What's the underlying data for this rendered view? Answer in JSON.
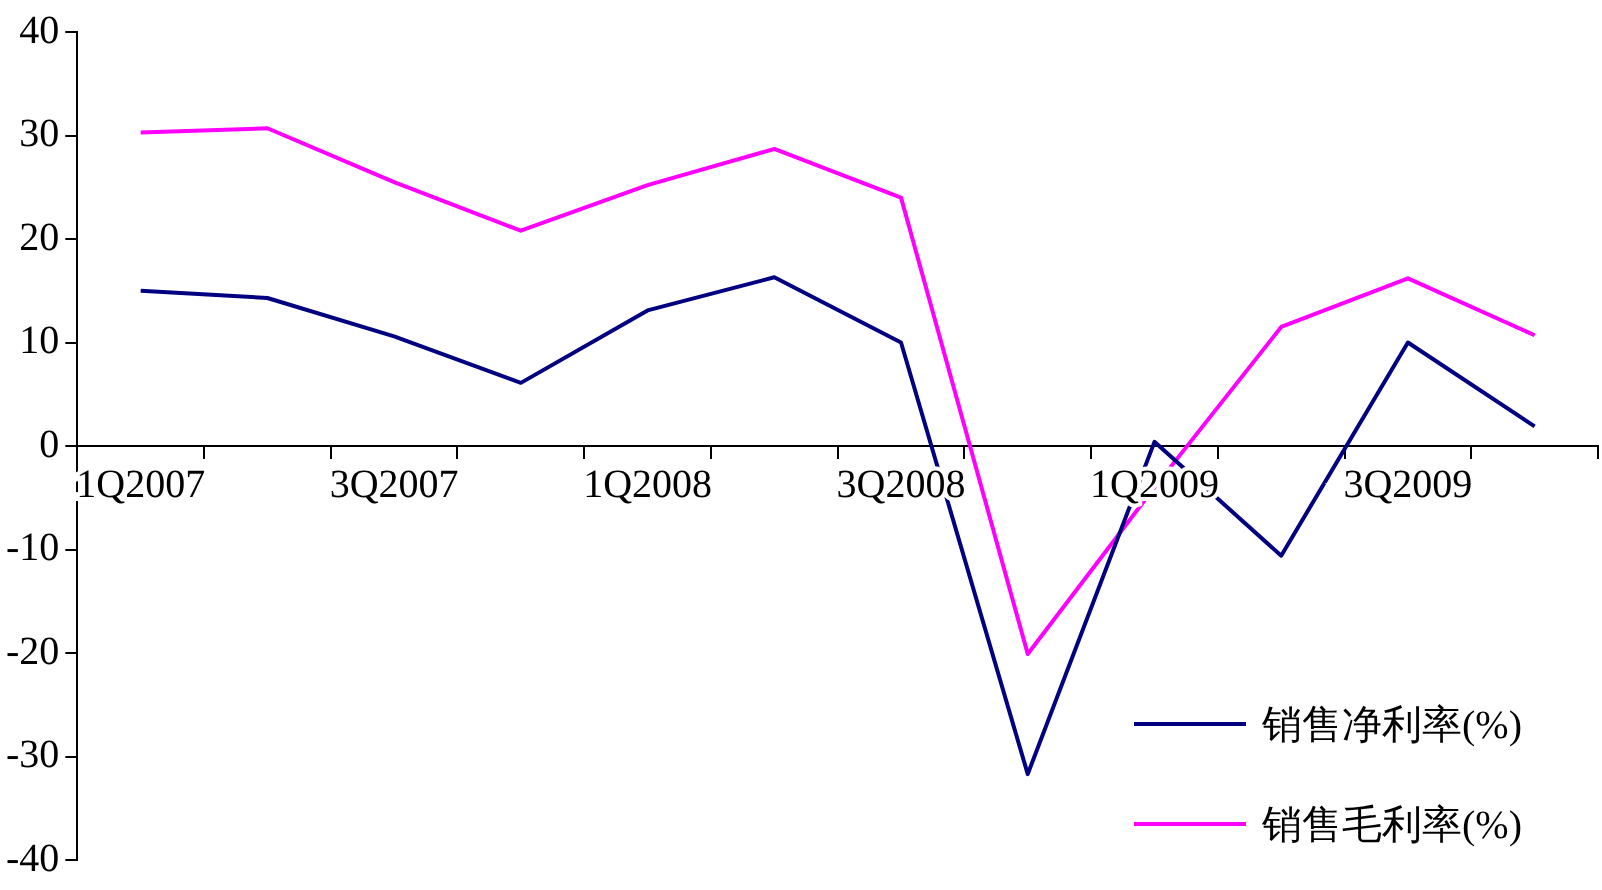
{
  "chart_data": {
    "type": "line",
    "categories": [
      "1Q2007",
      null,
      "3Q2007",
      null,
      "1Q2008",
      null,
      "3Q2008",
      null,
      "1Q2009",
      null,
      "3Q2009",
      null
    ],
    "series": [
      {
        "name": "销售净利率(%)",
        "color": "#000080",
        "values": [
          15.0,
          14.3,
          10.6,
          6.1,
          13.1,
          16.3,
          10.0,
          -31.7,
          0.4,
          -10.6,
          10.0,
          1.9
        ]
      },
      {
        "name": "销售毛利率(%)",
        "color": "#ff00ff",
        "values": [
          30.3,
          30.7,
          25.5,
          20.8,
          25.2,
          28.7,
          24.0,
          -20.1,
          -4,
          11.5,
          16.2,
          10.7
        ]
      }
    ],
    "ylim": [
      -40,
      40
    ],
    "yticks": [
      -40,
      -30,
      -20,
      -10,
      0,
      10,
      20,
      30,
      40
    ],
    "grid": false,
    "legend": "bottom right",
    "marker": "none",
    "line_style": "solid"
  }
}
